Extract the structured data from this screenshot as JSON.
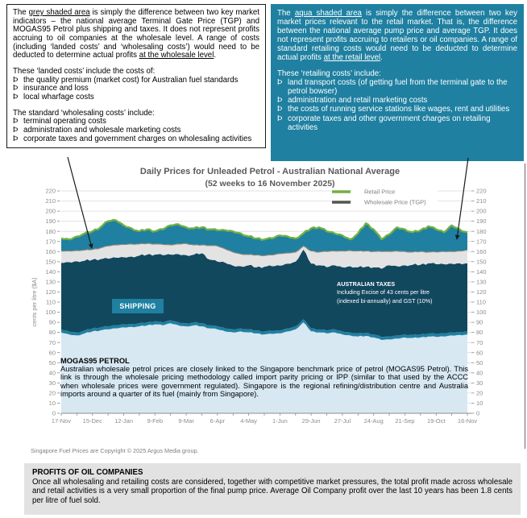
{
  "left_box": {
    "bullet": "Þ",
    "para1": {
      "pre": "The ",
      "u1": "grey shaded area",
      "mid": " is simply the difference between two key market indicators – the national average Terminal Gate Price (TGP) and MOGAS95 Petrol plus shipping and taxes. It does not represent profits accruing to oil companies at the wholesale level. A range of costs (including ‘landed costs’ and ‘wholesaling costs’) would need to be deducted to determine actual profits ",
      "u2": "at the wholesale level",
      "post": "."
    },
    "landed_intro": "These ‘landed costs’ include the costs of:",
    "landed_items": [
      "the quality premium (market cost) for Australian fuel standards",
      "insurance and loss",
      "local wharfage costs"
    ],
    "wholesaling_intro": "The standard ‘wholesaling costs’ include:",
    "wholesaling_items": [
      "terminal operating costs",
      "administration and wholesale marketing costs",
      "corporate taxes and government charges on wholesaling activities"
    ]
  },
  "right_box": {
    "bullet": "Þ",
    "para1": {
      "pre": "The ",
      "u1": "aqua shaded area",
      "mid": " is simply the difference between two key market prices relevant to the retail market. That is, the difference between the national average pump price and average TGP. It does not represent profits accruing to retailers or oil companies. A range of standard retailing costs would need to be deducted to determine actual profits ",
      "u2": "at the retail level",
      "post": "."
    },
    "retailing_intro": "These ‘retailing costs’ include:",
    "retailing_items": [
      "land transport costs  (of getting fuel from the terminal gate to the petrol bowser)",
      "administration and retail marketing costs",
      "the costs of running service stations like wages, rent and utilities",
      "corporate taxes and other government charges on retailing activities"
    ]
  },
  "chart_overlays": {
    "shipping": "SHIPPING",
    "taxes_title": "AUSTRALIAN TAXES",
    "taxes_line2": "Including Excise of 43 cents per litre",
    "taxes_line3": "(indexed bi-annually) and GST (10%)",
    "mogas_title": "MOGAS95 PETROL",
    "mogas_body": "Australian wholesale petrol prices are closely linked to the Singapore benchmark price of petrol (MOGAS95 Petrol). This link is through the wholesale pricing methodology called import parity pricing or IPP (similar to that used by the ACCC when wholesale prices were government regulated). Singapore is the regional refining/distribution centre and Australia imports around a quarter of its fuel (mainly from Singapore)."
  },
  "copyright": "Singapore Fuel Prices are Copyright © 2025 Argus Media group.",
  "profits_box": {
    "title": "PROFITS OF OIL COMPANIES",
    "body": "Once all wholesaling and retailing costs are considered, together with competitive market pressures, the total profit made across wholesale and retail activities is a very small proportion of the final pump price. Average Oil Company profit over the last 10 years has been 1.8 cents per litre of fuel sold."
  },
  "chart_data": {
    "type": "area",
    "title": "Daily Prices for Unleaded Petrol - Australian National Average",
    "subtitle": "(52 weeks to 16 November 2025)",
    "ylabel": "cents per litre  ($A)",
    "ylim": [
      0,
      220
    ],
    "ytick_step": 10,
    "grid": true,
    "legend_position": "top-right-inside",
    "x_unit": "weeks",
    "x_range": [
      0,
      52
    ],
    "x_tick_weeks": [
      0,
      4,
      8,
      12,
      16,
      20,
      24,
      28,
      32,
      36,
      40,
      44,
      48,
      52
    ],
    "x_tick_labels": [
      "17-Nov",
      "15-Dec",
      "12-Jan",
      "9-Feb",
      "9-Mar",
      "6-Apr",
      "4-May",
      "1-Jun",
      "29-Jun",
      "27-Jul",
      "24-Aug",
      "21-Sep",
      "19-Oct",
      "16-Nov"
    ],
    "legend": [
      {
        "name": "Retail Price",
        "color": "#73B043"
      },
      {
        "name": "Wholesale Price (TGP)",
        "color": "#55564F"
      }
    ],
    "colors": {
      "grid": "#DADADA",
      "axis": "#8C8C8C",
      "axis_text": "#8C8C8C",
      "title_text": "#595959",
      "legend_text": "#7F7F7A"
    },
    "series": [
      {
        "id": "mogas95",
        "name": "MOGAS95 petrol price (Singapore benchmark)",
        "fill": "#D7E8F3",
        "values": [
          80,
          78,
          77,
          79,
          81,
          82,
          83,
          84,
          85,
          85.5,
          86,
          87,
          88,
          87,
          89,
          87,
          86,
          87,
          86,
          84,
          83,
          81,
          80,
          81,
          80,
          79,
          78,
          78.5,
          79,
          81,
          83,
          90,
          81,
          80,
          79,
          80,
          78,
          77,
          76,
          76.5,
          75,
          72.5,
          73,
          74,
          75,
          74.5,
          75,
          76,
          75.5,
          76,
          77,
          77.5,
          78
        ]
      },
      {
        "id": "shipping",
        "name": "plus shipping",
        "fill": "#1F80A1",
        "values": [
          83,
          81,
          80,
          82,
          84,
          85,
          86,
          87,
          88,
          88.5,
          89,
          90,
          91,
          90,
          92,
          90,
          89,
          90,
          89,
          87,
          86,
          84,
          83,
          84,
          83,
          82,
          81,
          81.5,
          82,
          84,
          86,
          93,
          84,
          83,
          82,
          83,
          81,
          80,
          79,
          79.5,
          78,
          75.5,
          76,
          77,
          78,
          77.5,
          78,
          79,
          78.5,
          79,
          80,
          80.5,
          81
        ]
      },
      {
        "id": "taxes",
        "name": "plus Australian taxes (excise + GST)",
        "fill": "#12485E",
        "values": [
          149,
          149.5,
          150.5,
          151,
          152,
          152.5,
          153,
          154,
          154.5,
          155,
          156,
          157,
          157,
          156.5,
          157,
          157.5,
          156.5,
          157,
          158.5,
          152,
          150,
          149,
          146,
          145.5,
          146.5,
          144.5,
          145,
          145.5,
          146,
          148,
          150,
          162,
          148,
          146.5,
          144.5,
          146.5,
          144.5,
          145.5,
          144.5,
          145,
          144.5,
          143,
          146.5,
          145.5,
          146.5,
          147,
          147,
          148.5,
          147.5,
          147.5,
          148,
          148.5,
          148.5
        ]
      },
      {
        "id": "tgp",
        "name": "Wholesale Price (TGP)",
        "fill": "#E3E3E3",
        "line": "#8C8880",
        "values": [
          161,
          161,
          161.5,
          162,
          162.5,
          164,
          166,
          167,
          167.5,
          168,
          168,
          168.5,
          168,
          167.5,
          167,
          168,
          168.5,
          167,
          167,
          166.5,
          166,
          163,
          160,
          158,
          157.5,
          157,
          156.5,
          157,
          158.5,
          159,
          160,
          166,
          161,
          160,
          160.5,
          161,
          161,
          161.5,
          161,
          161,
          160.5,
          160.5,
          160.5,
          161,
          160.5,
          160,
          160.5,
          160,
          160,
          160.5,
          160.5,
          161,
          162
        ]
      },
      {
        "id": "retail",
        "name": "Retail Price",
        "fill": "#1F80A1",
        "line": "#73B043",
        "values": [
          173,
          172,
          175,
          178,
          180,
          184,
          190,
          191,
          186,
          183,
          180,
          182,
          180,
          182,
          186,
          187,
          184,
          183,
          184,
          182,
          181,
          181,
          180,
          178,
          175,
          173,
          172,
          173,
          176,
          175,
          173,
          178,
          183,
          184,
          180,
          178,
          176,
          172,
          178,
          188,
          182,
          172,
          177,
          184,
          182,
          179,
          181,
          185,
          182,
          179,
          186,
          182,
          179
        ]
      }
    ]
  }
}
